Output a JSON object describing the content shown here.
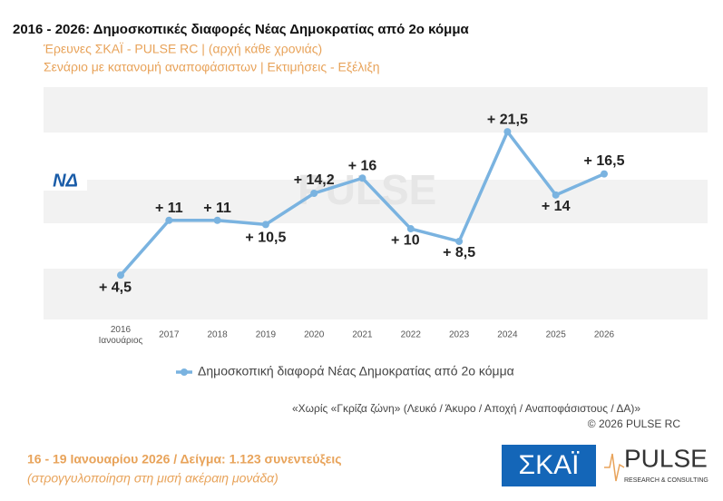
{
  "chart_data": {
    "type": "line",
    "title": "2016 - 2026: Δημοσκοπικές διαφορές Νέας Δημοκρατίας από 2ο κόμμα",
    "subtitle": [
      "Έρευνες ΣΚΑΪ - PULSE RC  |  (αρχή κάθε χρονιάς)",
      "Σενάριο με κατανομή αναποφάσιστων  |  Εκτιμήσεις - Εξέλιξη"
    ],
    "categories": [
      "2016 Ιανουάριος",
      "2017",
      "2018",
      "2019",
      "2020",
      "2021",
      "2022",
      "2023",
      "2024",
      "2025",
      "2026"
    ],
    "series": [
      {
        "name": "Δημοσκοπική διαφορά Νέας Δημοκρατίας από 2ο κόμμα",
        "color": "#7ab3e0",
        "values": [
          4.5,
          11,
          11,
          10.5,
          14.2,
          16,
          10,
          8.5,
          21.5,
          14,
          16.5
        ],
        "value_labels": [
          "+ 4,5",
          "+ 11",
          "+ 11",
          "+ 10,5",
          "+ 14,2",
          "+ 16",
          "+ 10",
          "+ 8,5",
          "+ 21,5",
          "+ 14",
          "+ 16,5"
        ]
      }
    ],
    "ylim": [
      0,
      27
    ],
    "notes": [
      "«Χωρίς «Γκρίζα ζώνη»  (Λευκό / Άκυρο / Αποχή / Αναποφάσιστους / ΔΑ)»",
      "©  2026  PULSE RC"
    ],
    "footer": [
      "16 - 19 Ιανουαρίου 2026  /  Δείγμα:  1.123 συνεντεύξεις",
      "(στρογγυλοποίηση στη μισή ακέραιη μονάδα)"
    ],
    "logos": {
      "party": "ΝΔ",
      "channel": "ΣΚΑΪ",
      "pollster": "PULSE",
      "pollster_tagline": "RESEARCH & CONSULTING"
    }
  }
}
